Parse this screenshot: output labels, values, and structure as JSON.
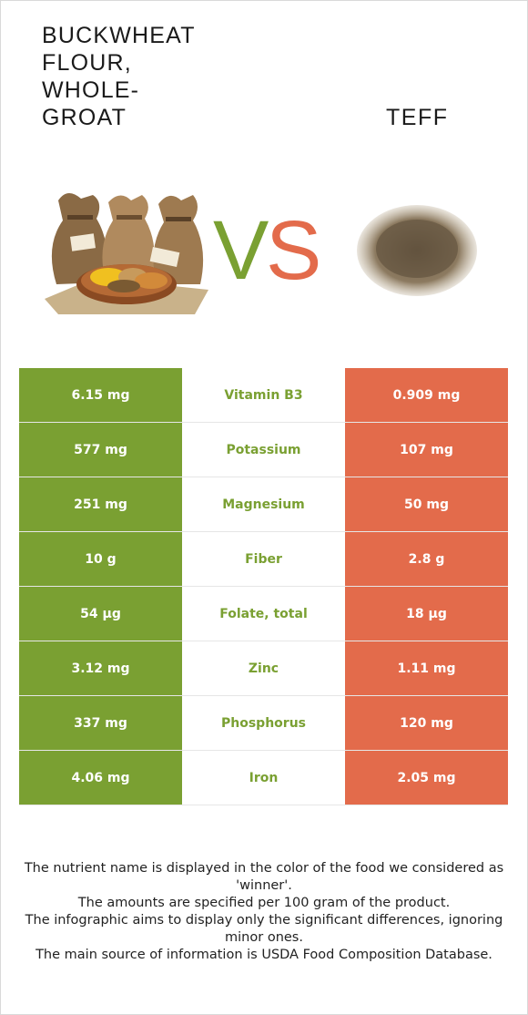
{
  "food_left": {
    "name": "BUCKWHEAT FLOUR, WHOLE-GROAT",
    "color": "#7aa032"
  },
  "food_right": {
    "name": "TEFF",
    "color": "#e36b4b"
  },
  "vs": {
    "v": "V",
    "s": "S"
  },
  "rows": [
    {
      "left": "6.15 mg",
      "nutrient": "Vitamin B3",
      "right": "0.909 mg"
    },
    {
      "left": "577 mg",
      "nutrient": "Potassium",
      "right": "107 mg"
    },
    {
      "left": "251 mg",
      "nutrient": "Magnesium",
      "right": "50 mg"
    },
    {
      "left": "10 g",
      "nutrient": "Fiber",
      "right": "2.8 g"
    },
    {
      "left": "54 µg",
      "nutrient": "Folate, total",
      "right": "18 µg"
    },
    {
      "left": "3.12 mg",
      "nutrient": "Zinc",
      "right": "1.11 mg"
    },
    {
      "left": "337 mg",
      "nutrient": "Phosphorus",
      "right": "120 mg"
    },
    {
      "left": "4.06 mg",
      "nutrient": "Iron",
      "right": "2.05 mg"
    }
  ],
  "notes": [
    "The nutrient name is displayed in the color of the food we considered as 'winner'.",
    "The amounts are specified per 100 gram of the product.",
    "The infographic aims to display only the significant differences, ignoring minor ones.",
    "The main source of information is USDA Food Composition Database."
  ]
}
